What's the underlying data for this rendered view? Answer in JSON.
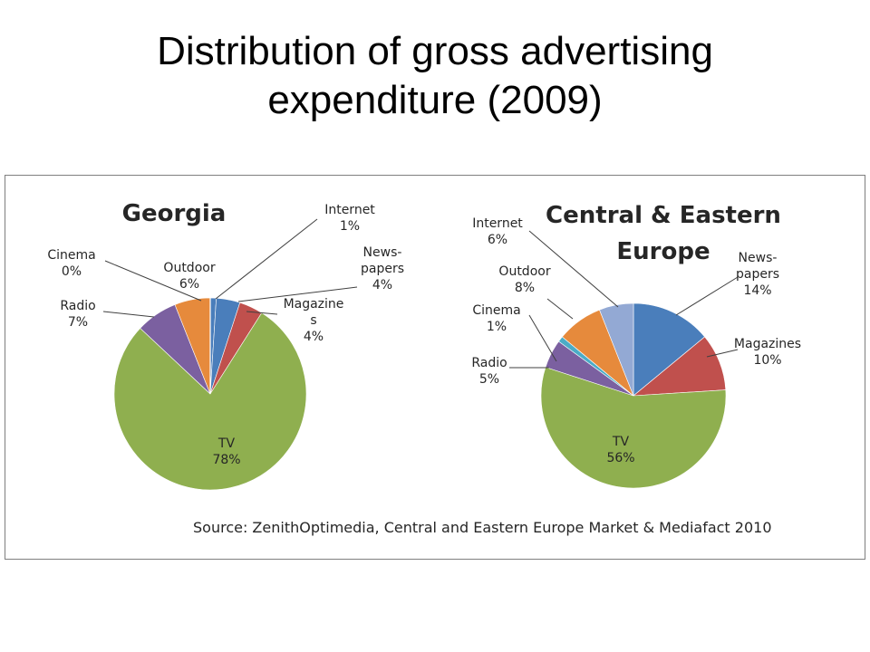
{
  "slide": {
    "title_line1": "Distribution of gross advertising",
    "title_line2": "expenditure (2009)"
  },
  "source": "Source: ZenithOptimedia, Central and Eastern Europe Market & Mediafact 2010",
  "colors": {
    "Internet": "#4a7ebb",
    "News-papers": "#c0504d",
    "TV": "#8faf4f",
    "Radio": "#7b60a0",
    "Cinema": "#4bacc6",
    "Outdoor": "#e68a3c",
    "Magazines": "#c0504d",
    "Newspapers": "#4a7ebb",
    "Other": "#93a9d4"
  },
  "chart_data": [
    {
      "type": "pie",
      "title": "Georgia",
      "slices": [
        {
          "key": "Internet",
          "label": [
            "Internet",
            "1%"
          ],
          "value": 1,
          "color": "#4a7ebb"
        },
        {
          "key": "News-papers",
          "label": [
            "News-",
            "papers",
            "4%"
          ],
          "value": 4,
          "color": "#4a7ebb"
        },
        {
          "key": "Magazines",
          "label": [
            "Magazine",
            "s",
            "4%"
          ],
          "value": 4,
          "color": "#c0504d"
        },
        {
          "key": "TV",
          "label": [
            "TV",
            "78%"
          ],
          "value": 78,
          "color": "#8faf4f"
        },
        {
          "key": "Radio",
          "label": [
            "Radio",
            "7%"
          ],
          "value": 7,
          "color": "#7b60a0"
        },
        {
          "key": "Outdoor",
          "label": [
            "Outdoor",
            "6%"
          ],
          "value": 6,
          "color": "#e68a3c"
        },
        {
          "key": "Cinema",
          "label": [
            "Cinema",
            "0%"
          ],
          "value": 0,
          "color": "#4bacc6"
        }
      ]
    },
    {
      "type": "pie",
      "title": [
        "Central & Eastern",
        "Europe"
      ],
      "slices": [
        {
          "key": "News-papers",
          "label": [
            "News-",
            "papers",
            "14%"
          ],
          "value": 14,
          "color": "#4a7ebb"
        },
        {
          "key": "Magazines",
          "label": [
            "Magazines",
            "10%"
          ],
          "value": 10,
          "color": "#c0504d"
        },
        {
          "key": "TV",
          "label": [
            "TV",
            "56%"
          ],
          "value": 56,
          "color": "#8faf4f"
        },
        {
          "key": "Radio",
          "label": [
            "Radio",
            "5%"
          ],
          "value": 5,
          "color": "#7b60a0"
        },
        {
          "key": "Cinema",
          "label": [
            "Cinema",
            "1%"
          ],
          "value": 1,
          "color": "#4bacc6"
        },
        {
          "key": "Outdoor",
          "label": [
            "Outdoor",
            "8%"
          ],
          "value": 8,
          "color": "#e68a3c"
        },
        {
          "key": "Internet",
          "label": [
            "Internet",
            "6%"
          ],
          "value": 6,
          "color": "#93a9d4"
        }
      ]
    }
  ]
}
